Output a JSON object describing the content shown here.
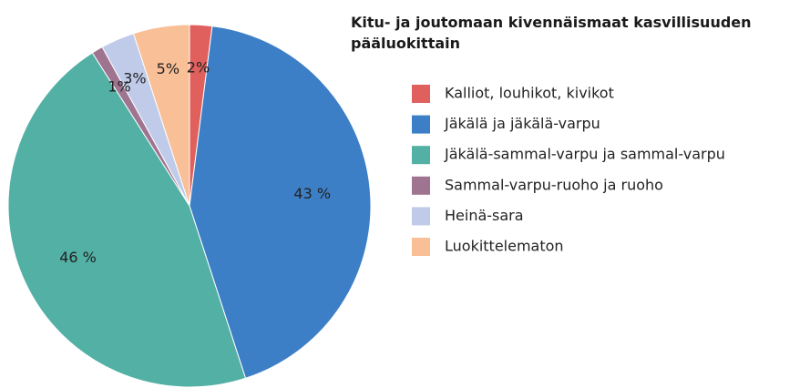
{
  "chart_data": {
    "type": "pie",
    "title": "Kitu- ja joutomaan kivennäismaat kasvillisuuden pääluokittain",
    "categories": [
      "Kalliot, louhikot, kivikot",
      "Jäkälä ja jäkälä-varpu",
      "Jäkälä-sammal-varpu ja sammal-varpu",
      "Sammal-varpu-ruoho ja ruoho",
      "Heinä-sara",
      "Luokittelematon"
    ],
    "values": [
      2,
      43,
      46,
      1,
      3,
      5
    ],
    "value_labels": [
      "2%",
      "43 %",
      "46 %",
      "1%",
      "3%",
      "5%"
    ],
    "colors": [
      "#e0605e",
      "#3d7fc6",
      "#52b0a5",
      "#9e7490",
      "#c0cbea",
      "#f9bf96"
    ],
    "legend": "right"
  }
}
